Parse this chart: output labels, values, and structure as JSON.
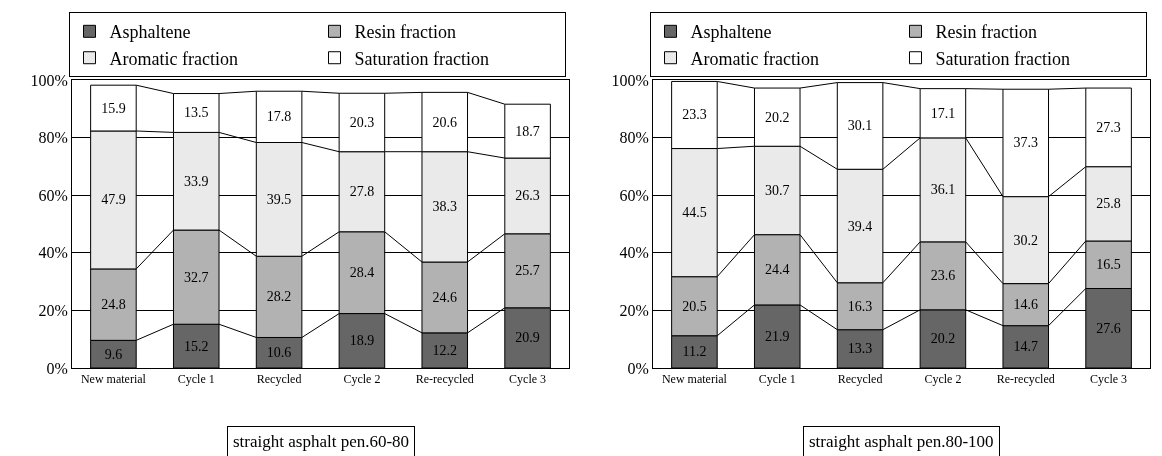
{
  "chart_data": [
    {
      "type": "bar",
      "stacked": true,
      "data_labels": true,
      "grid": "y",
      "legend": "top",
      "categories": [
        "New material",
        "Cycle 1",
        "Recycled",
        "Cycle 2",
        "Re-recycled",
        "Cycle 3"
      ],
      "series": [
        {
          "name": "Asphaltene",
          "color": "#666666",
          "values": [
            9.6,
            15.2,
            10.6,
            18.9,
            12.2,
            20.9
          ]
        },
        {
          "name": "Resin fraction",
          "color": "#b2b2b2",
          "values": [
            24.8,
            32.7,
            28.2,
            28.4,
            24.6,
            25.7
          ]
        },
        {
          "name": "Aromatic fraction",
          "color": "#eaeaea",
          "values": [
            47.9,
            33.9,
            39.5,
            27.8,
            38.3,
            26.3
          ]
        },
        {
          "name": "Saturation fraction",
          "color": "#ffffff",
          "values": [
            15.9,
            13.5,
            17.8,
            20.3,
            20.6,
            18.7
          ]
        }
      ],
      "ylim": [
        0,
        100
      ],
      "yticks": [
        {
          "value": 0,
          "label": "0%"
        },
        {
          "value": 20,
          "label": "20%"
        },
        {
          "value": 40,
          "label": "40%"
        },
        {
          "value": 60,
          "label": "60%"
        },
        {
          "value": 80,
          "label": "80%"
        },
        {
          "value": 100,
          "label": "100%"
        }
      ],
      "annotations": [
        "straight asphalt pen.60-80"
      ]
    },
    {
      "type": "bar",
      "stacked": true,
      "data_labels": true,
      "grid": "y",
      "legend": "top",
      "categories": [
        "New material",
        "Cycle 1",
        "Recycled",
        "Cycle 2",
        "Re-recycled",
        "Cycle 3"
      ],
      "series": [
        {
          "name": "Asphaltene",
          "color": "#666666",
          "values": [
            11.2,
            21.9,
            13.3,
            20.2,
            14.7,
            27.6
          ]
        },
        {
          "name": "Resin fraction",
          "color": "#b2b2b2",
          "values": [
            20.5,
            24.4,
            16.3,
            23.6,
            14.6,
            16.5
          ]
        },
        {
          "name": "Aromatic fraction",
          "color": "#eaeaea",
          "values": [
            44.5,
            30.7,
            39.4,
            36.1,
            30.2,
            25.8
          ]
        },
        {
          "name": "Saturation fraction",
          "color": "#ffffff",
          "values": [
            23.3,
            20.2,
            30.1,
            17.1,
            37.3,
            27.3
          ]
        }
      ],
      "ylim": [
        0,
        100
      ],
      "yticks": [
        {
          "value": 0,
          "label": "0%"
        },
        {
          "value": 20,
          "label": "20%"
        },
        {
          "value": 40,
          "label": "40%"
        },
        {
          "value": 60,
          "label": "60%"
        },
        {
          "value": 80,
          "label": "80%"
        },
        {
          "value": 100,
          "label": "100%"
        }
      ],
      "annotations": [
        "straight asphalt pen.80-100"
      ]
    }
  ]
}
